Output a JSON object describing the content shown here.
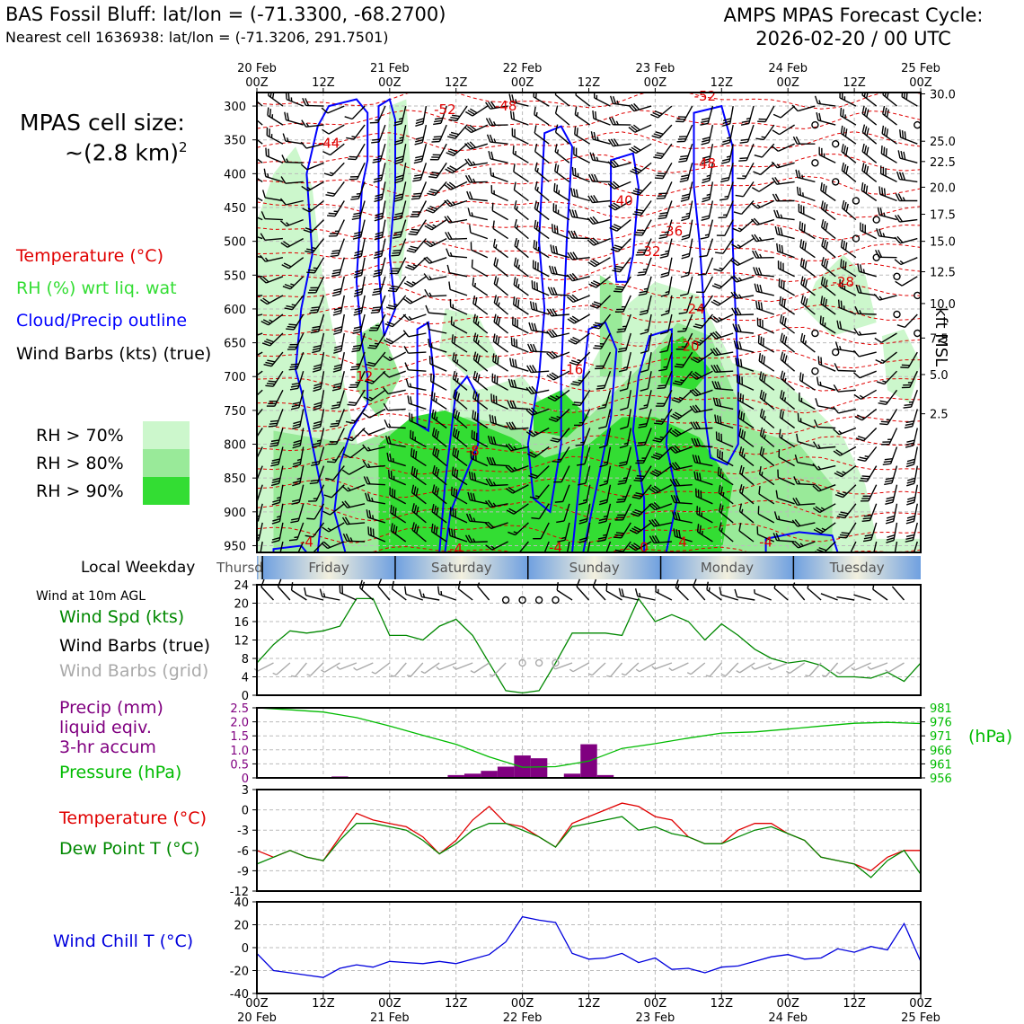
{
  "header": {
    "title_left": "BAS Fossil Bluff: lat/lon = (-71.3300, -68.2700)",
    "subtitle_left": "Nearest cell 1636938: lat/lon = (-71.3206, 291.7501)",
    "title_right_line1": "AMPS MPAS Forecast Cycle:",
    "title_right_line2": "2026-02-20 / 00 UTC"
  },
  "legend": {
    "cell_size_line1": "MPAS cell size:",
    "cell_size_line2": "~(2.8 km)",
    "cell_size_exp": "2",
    "temperature": "Temperature (°C)",
    "rh": "RH (%) wrt liq. wat",
    "cloud": "Cloud/Precip outline",
    "wind_barbs": "Wind Barbs (kts) (true)",
    "rh70": "RH > 70%",
    "rh80": "RH > 80%",
    "rh90": "RH > 90%",
    "local_weekday": "Local Weekday",
    "wind_10m": "Wind at 10m AGL",
    "wind_spd": "Wind Spd (kts)",
    "wind_barbs_true": "Wind Barbs (true)",
    "wind_barbs_grid": "Wind Barbs (grid)",
    "precip_1": "Precip (mm)",
    "precip_2": "liquid eqiv.",
    "precip_3": "3-hr accum",
    "pressure": "Pressure (hPa)",
    "hpa_unit": "(hPa)",
    "temp2": "Temperature (°C)",
    "dewpoint": "Dew Point T (°C)",
    "windchill": "Wind Chill T (°C)",
    "kft_label": "kft MSL"
  },
  "colors": {
    "temperature": "#e00000",
    "rh_text": "#33dd33",
    "cloud": "#0000ff",
    "rh70": "#ccf7cc",
    "rh80": "#99ea99",
    "rh90": "#33dd33",
    "wind_spd": "#008800",
    "grid_barbs": "#aaaaaa",
    "precip": "#800080",
    "pressure": "#00bb00",
    "dewpoint": "#008800",
    "windchill": "#0000dd"
  },
  "chart_data": [
    {
      "type": "heatmap",
      "panel": "cross-section",
      "top_ticks": [
        {
          "l1": "20 Feb",
          "l2": "00Z"
        },
        {
          "l1": "",
          "l2": "12Z"
        },
        {
          "l1": "21 Feb",
          "l2": "00Z"
        },
        {
          "l1": "",
          "l2": "12Z"
        },
        {
          "l1": "22 Feb",
          "l2": "00Z"
        },
        {
          "l1": "",
          "l2": "12Z"
        },
        {
          "l1": "23 Feb",
          "l2": "00Z"
        },
        {
          "l1": "",
          "l2": "12Z"
        },
        {
          "l1": "24 Feb",
          "l2": "00Z"
        },
        {
          "l1": "",
          "l2": "12Z"
        },
        {
          "l1": "25 Feb",
          "l2": "00Z"
        }
      ],
      "x_hours_range": [
        0,
        120
      ],
      "pressure_ticks": [
        "300",
        "350",
        "400",
        "450",
        "500",
        "550",
        "600",
        "650",
        "700",
        "750",
        "800",
        "850",
        "900",
        "950"
      ],
      "pressure_range": [
        280,
        960
      ],
      "kft_ticks": [
        {
          "label": "30.0",
          "p": 282
        },
        {
          "label": "25.0",
          "p": 352
        },
        {
          "label": "22.5",
          "p": 382
        },
        {
          "label": "20.0",
          "p": 420
        },
        {
          "label": "17.5",
          "p": 460
        },
        {
          "label": "15.0",
          "p": 500
        },
        {
          "label": "12.5",
          "p": 545
        },
        {
          "label": "10.0",
          "p": 592
        },
        {
          "label": "7.5",
          "p": 643
        },
        {
          "label": "5.0",
          "p": 697
        },
        {
          "label": "2.5",
          "p": 755
        }
      ],
      "temp_labels": [
        {
          "text": "-52",
          "h": 34,
          "p": 305
        },
        {
          "text": "-48",
          "h": 45,
          "p": 300
        },
        {
          "text": "-52",
          "h": 81,
          "p": 285
        },
        {
          "text": "-48",
          "h": 81,
          "p": 385
        },
        {
          "text": "-44",
          "h": 13,
          "p": 355
        },
        {
          "text": "-40",
          "h": 66,
          "p": 440
        },
        {
          "text": "-36",
          "h": 75,
          "p": 485
        },
        {
          "text": "-32",
          "h": 71,
          "p": 515
        },
        {
          "text": "-28",
          "h": 106,
          "p": 560
        },
        {
          "text": "-24",
          "h": 79,
          "p": 600
        },
        {
          "text": "-20",
          "h": 78,
          "p": 655
        },
        {
          "text": "-16",
          "h": 57,
          "p": 690
        },
        {
          "text": "-12",
          "h": 19,
          "p": 700
        },
        {
          "text": "-8",
          "h": 39,
          "p": 810
        },
        {
          "text": "-4",
          "h": 9,
          "p": 945
        },
        {
          "text": "-4",
          "h": 36,
          "p": 955
        },
        {
          "text": "-4",
          "h": 54,
          "p": 953
        },
        {
          "text": "0",
          "h": 70,
          "p": 953
        },
        {
          "text": "4",
          "h": 77,
          "p": 945
        },
        {
          "text": "-4",
          "h": 92,
          "p": 945
        }
      ]
    },
    {
      "type": "table",
      "panel": "weekday",
      "days": [
        "Thursday",
        "Friday",
        "Saturday",
        "Sunday",
        "Monday",
        "Tuesday"
      ]
    },
    {
      "type": "line",
      "panel": "wind-10m",
      "x_hours": [
        0,
        3,
        6,
        9,
        12,
        15,
        18,
        21,
        24,
        27,
        30,
        33,
        36,
        39,
        42,
        45,
        48,
        51,
        54,
        57,
        60,
        63,
        66,
        69,
        72,
        75,
        78,
        81,
        84,
        87,
        90,
        93,
        96,
        99,
        102,
        105,
        108,
        111,
        114,
        117,
        120
      ],
      "series": [
        {
          "name": "Wind Spd (kts)",
          "values": [
            7,
            11,
            14,
            13.5,
            14,
            15,
            21,
            21,
            13,
            13,
            12,
            15,
            16.5,
            13,
            7,
            1,
            0.5,
            1,
            7,
            13.5,
            13.5,
            13.5,
            13,
            21,
            16,
            17.5,
            16,
            12,
            15.5,
            13,
            10,
            8,
            7,
            7.5,
            6.5,
            4,
            4,
            3.7,
            5,
            3,
            7
          ]
        }
      ],
      "grid_barbs_speed": [
        7,
        8,
        8,
        8,
        7.5,
        8,
        8,
        8,
        8.5,
        8,
        8,
        7.5,
        8,
        7.5,
        7,
        7,
        7,
        7,
        7,
        8,
        8,
        8,
        8,
        8,
        8,
        8,
        8,
        8,
        8,
        8,
        8,
        7.5,
        7,
        7,
        7,
        6.5,
        6.5,
        6,
        5,
        5,
        7
      ],
      "calm_hours": [
        48,
        51,
        54
      ],
      "yticks": [
        0,
        4,
        8,
        12,
        16,
        20,
        24
      ],
      "ylim": [
        0,
        24
      ]
    },
    {
      "type": "bar",
      "panel": "precip-pressure",
      "precip_hours": [
        15,
        36,
        39,
        42,
        45,
        48,
        51,
        57,
        60,
        63
      ],
      "precip_mm": [
        0.05,
        0.1,
        0.15,
        0.25,
        0.4,
        0.8,
        0.7,
        0.15,
        1.2,
        0.1
      ],
      "yticks_left": [
        0,
        0.5,
        1.0,
        1.5,
        2.0,
        2.5
      ],
      "ylim_left": [
        0,
        2.5
      ],
      "pressure_hours": [
        0,
        6,
        12,
        18,
        24,
        30,
        36,
        42,
        48,
        54,
        60,
        66,
        72,
        78,
        84,
        90,
        96,
        102,
        108,
        114,
        120
      ],
      "pressure_hpa": [
        981,
        980.3,
        979.5,
        977.5,
        974.5,
        971.2,
        968,
        963.5,
        959.8,
        960,
        962,
        966.5,
        968.2,
        970.2,
        972,
        972.4,
        973.4,
        974.5,
        975.5,
        975.8,
        975.4
      ],
      "yticks_right": [
        956,
        961,
        966,
        971,
        976,
        981
      ],
      "ylim_right": [
        956,
        981
      ]
    },
    {
      "type": "line",
      "panel": "temp-dew",
      "x_hours": [
        0,
        3,
        6,
        9,
        12,
        15,
        18,
        21,
        24,
        27,
        30,
        33,
        36,
        39,
        42,
        45,
        48,
        51,
        54,
        57,
        60,
        63,
        66,
        69,
        72,
        75,
        78,
        81,
        84,
        87,
        90,
        93,
        96,
        99,
        102,
        105,
        108,
        111,
        114,
        117,
        120
      ],
      "series": [
        {
          "name": "Temperature (°C)",
          "values": [
            -6,
            -7,
            -6,
            -7,
            -7.5,
            -4,
            -0.5,
            -1.5,
            -2,
            -2.5,
            -4,
            -6.5,
            -4.5,
            -1.5,
            0.5,
            -2,
            -2.5,
            -4,
            -5.5,
            -2,
            -1,
            0,
            1,
            0.5,
            -1,
            -1.5,
            -4,
            -5,
            -5,
            -3,
            -2,
            -2,
            -3.5,
            -4.5,
            -7,
            -7.5,
            -8,
            -9,
            -7,
            -6,
            -6
          ]
        },
        {
          "name": "Dew Point T (°C)",
          "values": [
            -8,
            -7,
            -6,
            -7,
            -7.5,
            -4.5,
            -2,
            -2,
            -2.5,
            -3,
            -4.5,
            -6.5,
            -5,
            -3,
            -2,
            -2,
            -3,
            -4,
            -5.5,
            -2.5,
            -2,
            -1.5,
            -1,
            -3,
            -2.5,
            -3.5,
            -4,
            -5,
            -5,
            -4,
            -3,
            -2.5,
            -3.5,
            -4.5,
            -7,
            -7.5,
            -8,
            -10,
            -7.5,
            -6,
            -9.5
          ]
        }
      ],
      "yticks": [
        -12,
        -9,
        -6,
        -3,
        0,
        3
      ],
      "ylim": [
        -12,
        3
      ]
    },
    {
      "type": "line",
      "panel": "windchill",
      "x_hours": [
        0,
        3,
        6,
        9,
        12,
        15,
        18,
        21,
        24,
        27,
        30,
        33,
        36,
        39,
        42,
        45,
        48,
        51,
        54,
        57,
        60,
        63,
        66,
        69,
        72,
        75,
        78,
        81,
        84,
        87,
        90,
        93,
        96,
        99,
        102,
        105,
        108,
        111,
        114,
        117,
        120
      ],
      "series": [
        {
          "name": "Wind Chill T (°C)",
          "values": [
            -5,
            -20,
            -22,
            -24,
            -26,
            -18,
            -15,
            -17,
            -12,
            -13,
            -14,
            -12,
            -14,
            -10,
            -6,
            5,
            27,
            24,
            22,
            -5,
            -10,
            -9,
            -5,
            -13,
            -9,
            -19,
            -18,
            -22,
            -17,
            -16,
            -12,
            -8,
            -6,
            -10,
            -9,
            -1,
            -4,
            1,
            -2,
            21,
            -12
          ]
        }
      ],
      "yticks": [
        -40,
        -20,
        0,
        20,
        40
      ],
      "ylim": [
        -40,
        40
      ],
      "bottom_ticks": [
        {
          "l1": "00Z",
          "l2": "20 Feb"
        },
        {
          "l1": "12Z",
          "l2": ""
        },
        {
          "l1": "00Z",
          "l2": "21 Feb"
        },
        {
          "l1": "12Z",
          "l2": ""
        },
        {
          "l1": "00Z",
          "l2": "22 Feb"
        },
        {
          "l1": "12Z",
          "l2": ""
        },
        {
          "l1": "00Z",
          "l2": "23 Feb"
        },
        {
          "l1": "12Z",
          "l2": ""
        },
        {
          "l1": "00Z",
          "l2": "24 Feb"
        },
        {
          "l1": "12Z",
          "l2": ""
        },
        {
          "l1": "00Z",
          "l2": "25 Feb"
        }
      ]
    }
  ]
}
